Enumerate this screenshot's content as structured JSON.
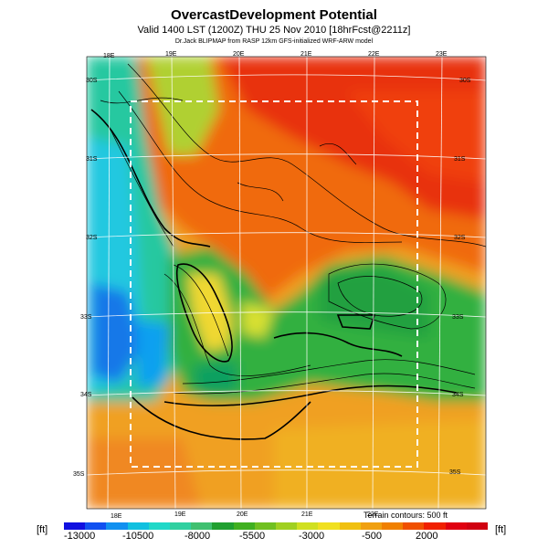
{
  "header": {
    "title": "OvercastDevelopment Potential",
    "subtitle": "Valid 1400 LST (1200Z) THU 25 Nov 2010 [18hrFcst@2211z]",
    "credit": "Dr.Jack BLIPMAP from RASP 12km GFS-initialized WRF-ARW model"
  },
  "map": {
    "lon_labels_top": [
      "18E",
      "19E",
      "20E",
      "21E",
      "22E",
      "23E"
    ],
    "lon_labels_bottom": [
      "18E",
      "19E",
      "20E",
      "21E",
      "22E"
    ],
    "lat_labels_left": [
      "30S",
      "31S",
      "32S",
      "33S",
      "34S",
      "35S"
    ],
    "lat_labels_right": [
      "30S",
      "31S",
      "32S",
      "33S",
      "34S",
      "35S"
    ],
    "terrain_note": "Terrain contours: 500 ft"
  },
  "colorbar": {
    "unit_left": "[ft]",
    "unit_right": "[ft]",
    "ticks": [
      "-13000",
      "-10500",
      "-8000",
      "-5500",
      "-3000",
      "-500",
      "2000"
    ],
    "colors": [
      "#1010e0",
      "#1050f0",
      "#1090f0",
      "#10c0e0",
      "#20d8c8",
      "#30d0a0",
      "#40c070",
      "#20a030",
      "#40b020",
      "#70c020",
      "#a0d020",
      "#d0e020",
      "#f0e020",
      "#f0c010",
      "#f0a010",
      "#f08000",
      "#f05000",
      "#f02000",
      "#e00010",
      "#d00010"
    ]
  }
}
